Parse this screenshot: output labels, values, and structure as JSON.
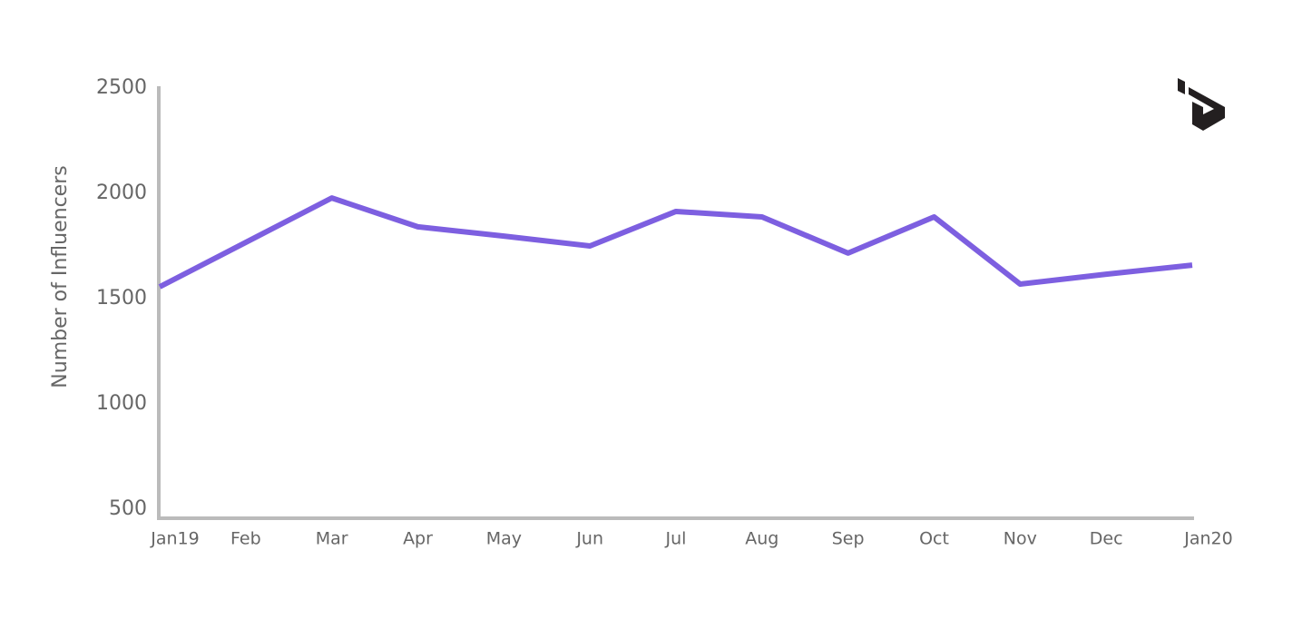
{
  "chart_data": {
    "type": "line",
    "y_label": "Number of Influencers",
    "categories": [
      "Jan19",
      "Feb",
      "Mar",
      "Apr",
      "May",
      "Jun",
      "Jul",
      "Aug",
      "Sep",
      "Oct",
      "Nov",
      "Dec",
      "Jan20"
    ],
    "series": [
      {
        "color": "#7d5fe0",
        "values": [
          1556,
          1767,
          1978,
          1841,
          1797,
          1750,
          1914,
          1888,
          1716,
          1888,
          1569,
          1616,
          1659
        ]
      }
    ],
    "ylim": [
      500,
      2500
    ],
    "yticks": [
      500,
      1000,
      1500,
      2000,
      2500
    ],
    "grid": false
  }
}
